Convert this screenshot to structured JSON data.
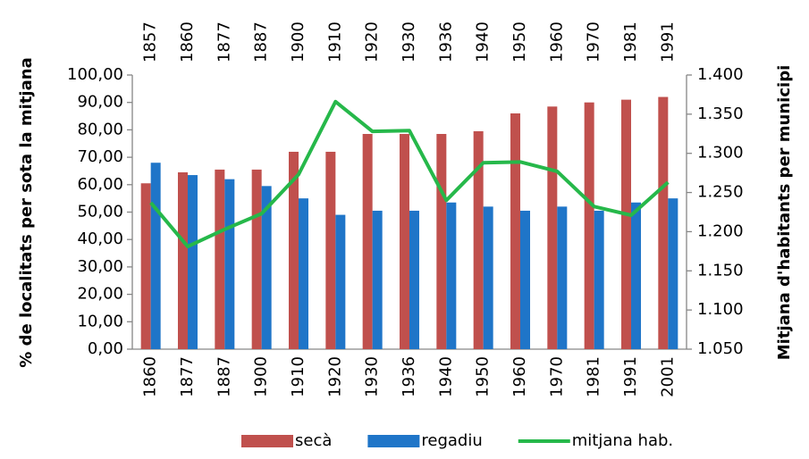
{
  "chart_data": {
    "type": "bar",
    "ylabel": "% de localitats per sota la mitjana",
    "y2label": "Mitjana d'habitants per municipi",
    "categories": [
      "1860",
      "1877",
      "1887",
      "1900",
      "1910",
      "1920",
      "1930",
      "1936",
      "1940",
      "1950",
      "1960",
      "1970",
      "1981",
      "1991",
      "2001"
    ],
    "top_categories": [
      "1857",
      "1860",
      "1877",
      "1887",
      "1900",
      "1910",
      "1920",
      "1930",
      "1936",
      "1940",
      "1950",
      "1960",
      "1970",
      "1981",
      "1991"
    ],
    "series": [
      {
        "name": "secà",
        "color": "#c0504d",
        "values": [
          60.5,
          64.5,
          65.5,
          65.5,
          72,
          72,
          78.5,
          78.5,
          78.5,
          79.5,
          86,
          88.5,
          90,
          91,
          92
        ]
      },
      {
        "name": "regadiu",
        "color": "#1f75c8",
        "values": [
          68,
          63.5,
          62,
          59.5,
          55,
          49,
          50.5,
          50.5,
          53.5,
          52,
          50.5,
          52,
          50.5,
          53.5,
          55
        ]
      },
      {
        "name": "mitjana hab.",
        "color": "#26b84a",
        "type": "line",
        "axis": "y2",
        "values": [
          1237,
          1181,
          1203,
          1223,
          1273,
          1366,
          1328,
          1329,
          1240,
          1288,
          1289,
          1277,
          1232,
          1221,
          1263
        ]
      }
    ],
    "ylim": [
      0,
      100
    ],
    "yticks": [
      {
        "value": 0,
        "label": "0,00"
      },
      {
        "value": 10,
        "label": "10,00"
      },
      {
        "value": 20,
        "label": "20,00"
      },
      {
        "value": 30,
        "label": "30,00"
      },
      {
        "value": 40,
        "label": "40,00"
      },
      {
        "value": 50,
        "label": "50,00"
      },
      {
        "value": 60,
        "label": "60,00"
      },
      {
        "value": 70,
        "label": "70,00"
      },
      {
        "value": 80,
        "label": "80,00"
      },
      {
        "value": 90,
        "label": "90,00"
      },
      {
        "value": 100,
        "label": "100,00"
      }
    ],
    "y2lim": [
      1050,
      1400
    ],
    "y2ticks": [
      {
        "value": 1050,
        "label": "1.050"
      },
      {
        "value": 1100,
        "label": "1.100"
      },
      {
        "value": 1150,
        "label": "1.150"
      },
      {
        "value": 1200,
        "label": "1.200"
      },
      {
        "value": 1250,
        "label": "1.250"
      },
      {
        "value": 1300,
        "label": "1.300"
      },
      {
        "value": 1350,
        "label": "1.350"
      },
      {
        "value": 1400,
        "label": "1.400"
      }
    ],
    "legend": "bottom"
  }
}
